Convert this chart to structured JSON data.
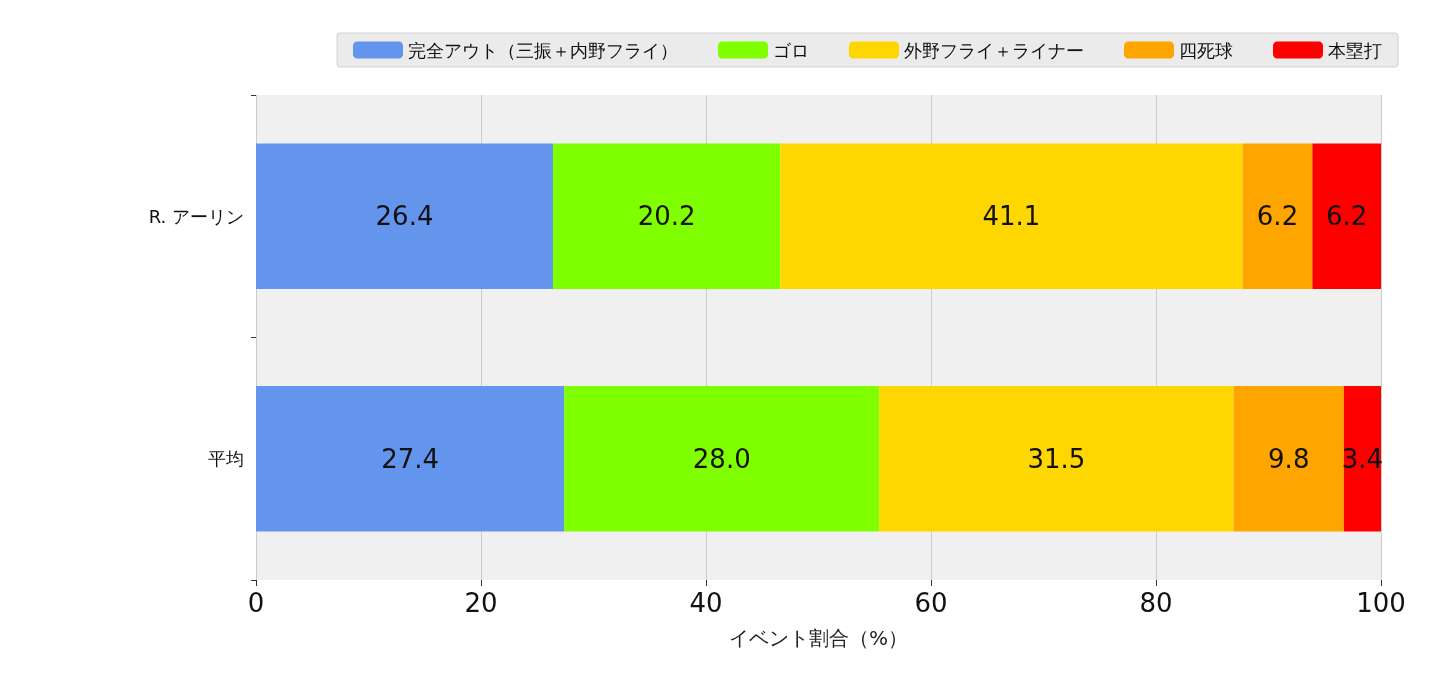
{
  "chart_data": {
    "type": "bar",
    "orientation": "horizontal",
    "stacked": true,
    "xlabel": "イベント割合（%）",
    "categories": [
      "R. アーリン",
      "平均"
    ],
    "series": [
      {
        "name": "完全アウト（三振＋内野フライ）",
        "color": "#6495ed",
        "values": [
          26.4,
          27.4
        ],
        "value_labels": [
          "26.4",
          "27.4"
        ]
      },
      {
        "name": "ゴロ",
        "color": "#7fff00",
        "values": [
          20.2,
          28.0
        ],
        "value_labels": [
          "20.2",
          "28.0"
        ]
      },
      {
        "name": "外野フライ＋ライナー",
        "color": "#ffd700",
        "values": [
          41.1,
          31.5
        ],
        "value_labels": [
          "41.1",
          "31.5"
        ]
      },
      {
        "name": "四死球",
        "color": "#ffa500",
        "values": [
          6.2,
          9.8
        ],
        "value_labels": [
          "6.2",
          "9.8"
        ]
      },
      {
        "name": "本塁打",
        "color": "#ff0000",
        "values": [
          6.2,
          3.4
        ],
        "value_labels": [
          "6.2",
          "3.4"
        ]
      }
    ],
    "xlim": [
      0,
      100
    ],
    "xticks": [
      0,
      20,
      40,
      60,
      80,
      100
    ],
    "grid": "x",
    "legend": "top right"
  }
}
